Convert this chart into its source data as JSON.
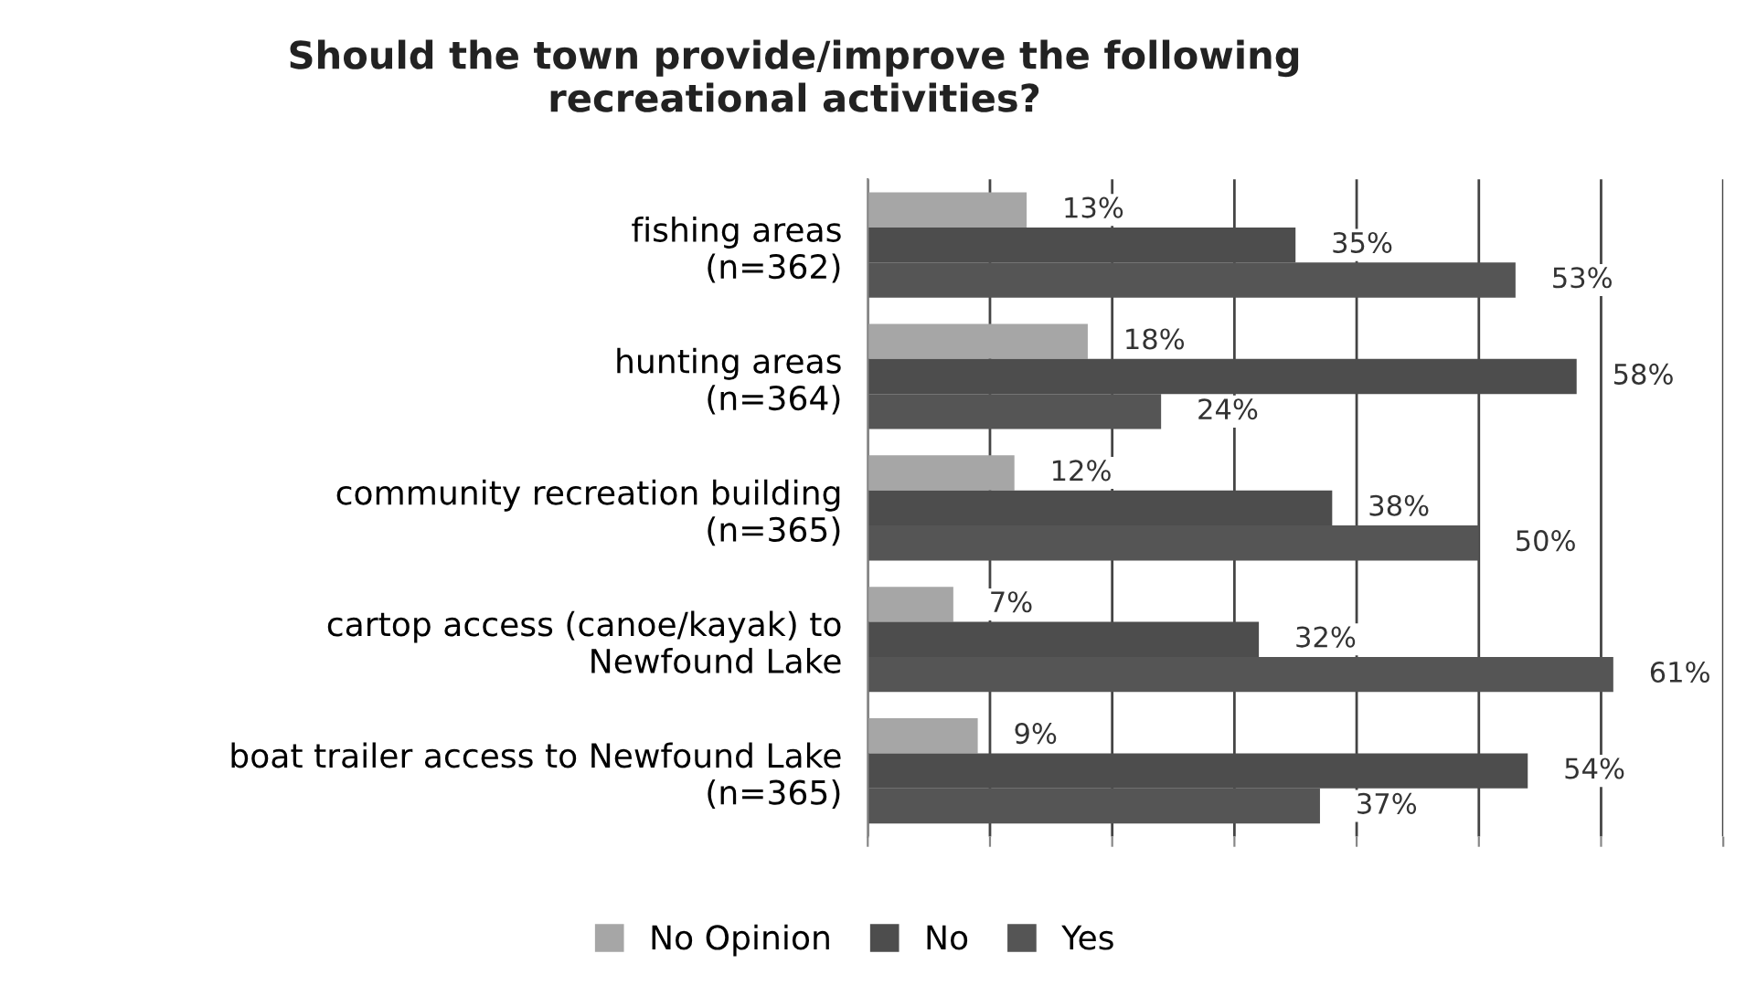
{
  "chart_data": {
    "type": "bar",
    "orientation": "horizontal",
    "title": "Should the town provide/improve the following\nrecreational activities?",
    "categories": [
      "fishing areas\n(n=362)",
      "hunting areas\n(n=364)",
      "community recreation building\n(n=365)",
      "cartop access (canoe/kayak) to\nNewfound Lake",
      "boat trailer access to Newfound Lake\n(n=365)"
    ],
    "series": [
      {
        "name": "No Opinion",
        "color": "#a6a6a6",
        "values": [
          13,
          18,
          12,
          7,
          9
        ],
        "value_labels": [
          "13%",
          "18%",
          "12%",
          "7%",
          "9%"
        ]
      },
      {
        "name": "No",
        "color": "#4d4d4d",
        "values": [
          35,
          58,
          38,
          32,
          54
        ],
        "value_labels": [
          "35%",
          "58%",
          "38%",
          "32%",
          "54%"
        ]
      },
      {
        "name": "Yes",
        "color": "#555555",
        "values": [
          53,
          24,
          50,
          61,
          37
        ],
        "value_labels": [
          "53%",
          "24%",
          "50%",
          "61%",
          "37%"
        ]
      }
    ],
    "xlim": [
      0,
      70
    ],
    "xticks": [
      {
        "value": 0,
        "label": null
      },
      {
        "value": 10,
        "label": null
      },
      {
        "value": 20,
        "label": null
      },
      {
        "value": 30,
        "label": null
      },
      {
        "value": 40,
        "label": null
      },
      {
        "value": 50,
        "label": null
      },
      {
        "value": 60,
        "label": null
      },
      {
        "value": 70,
        "label": null
      }
    ],
    "grid": "x",
    "legend": "bottom",
    "tick_labels": "y"
  }
}
